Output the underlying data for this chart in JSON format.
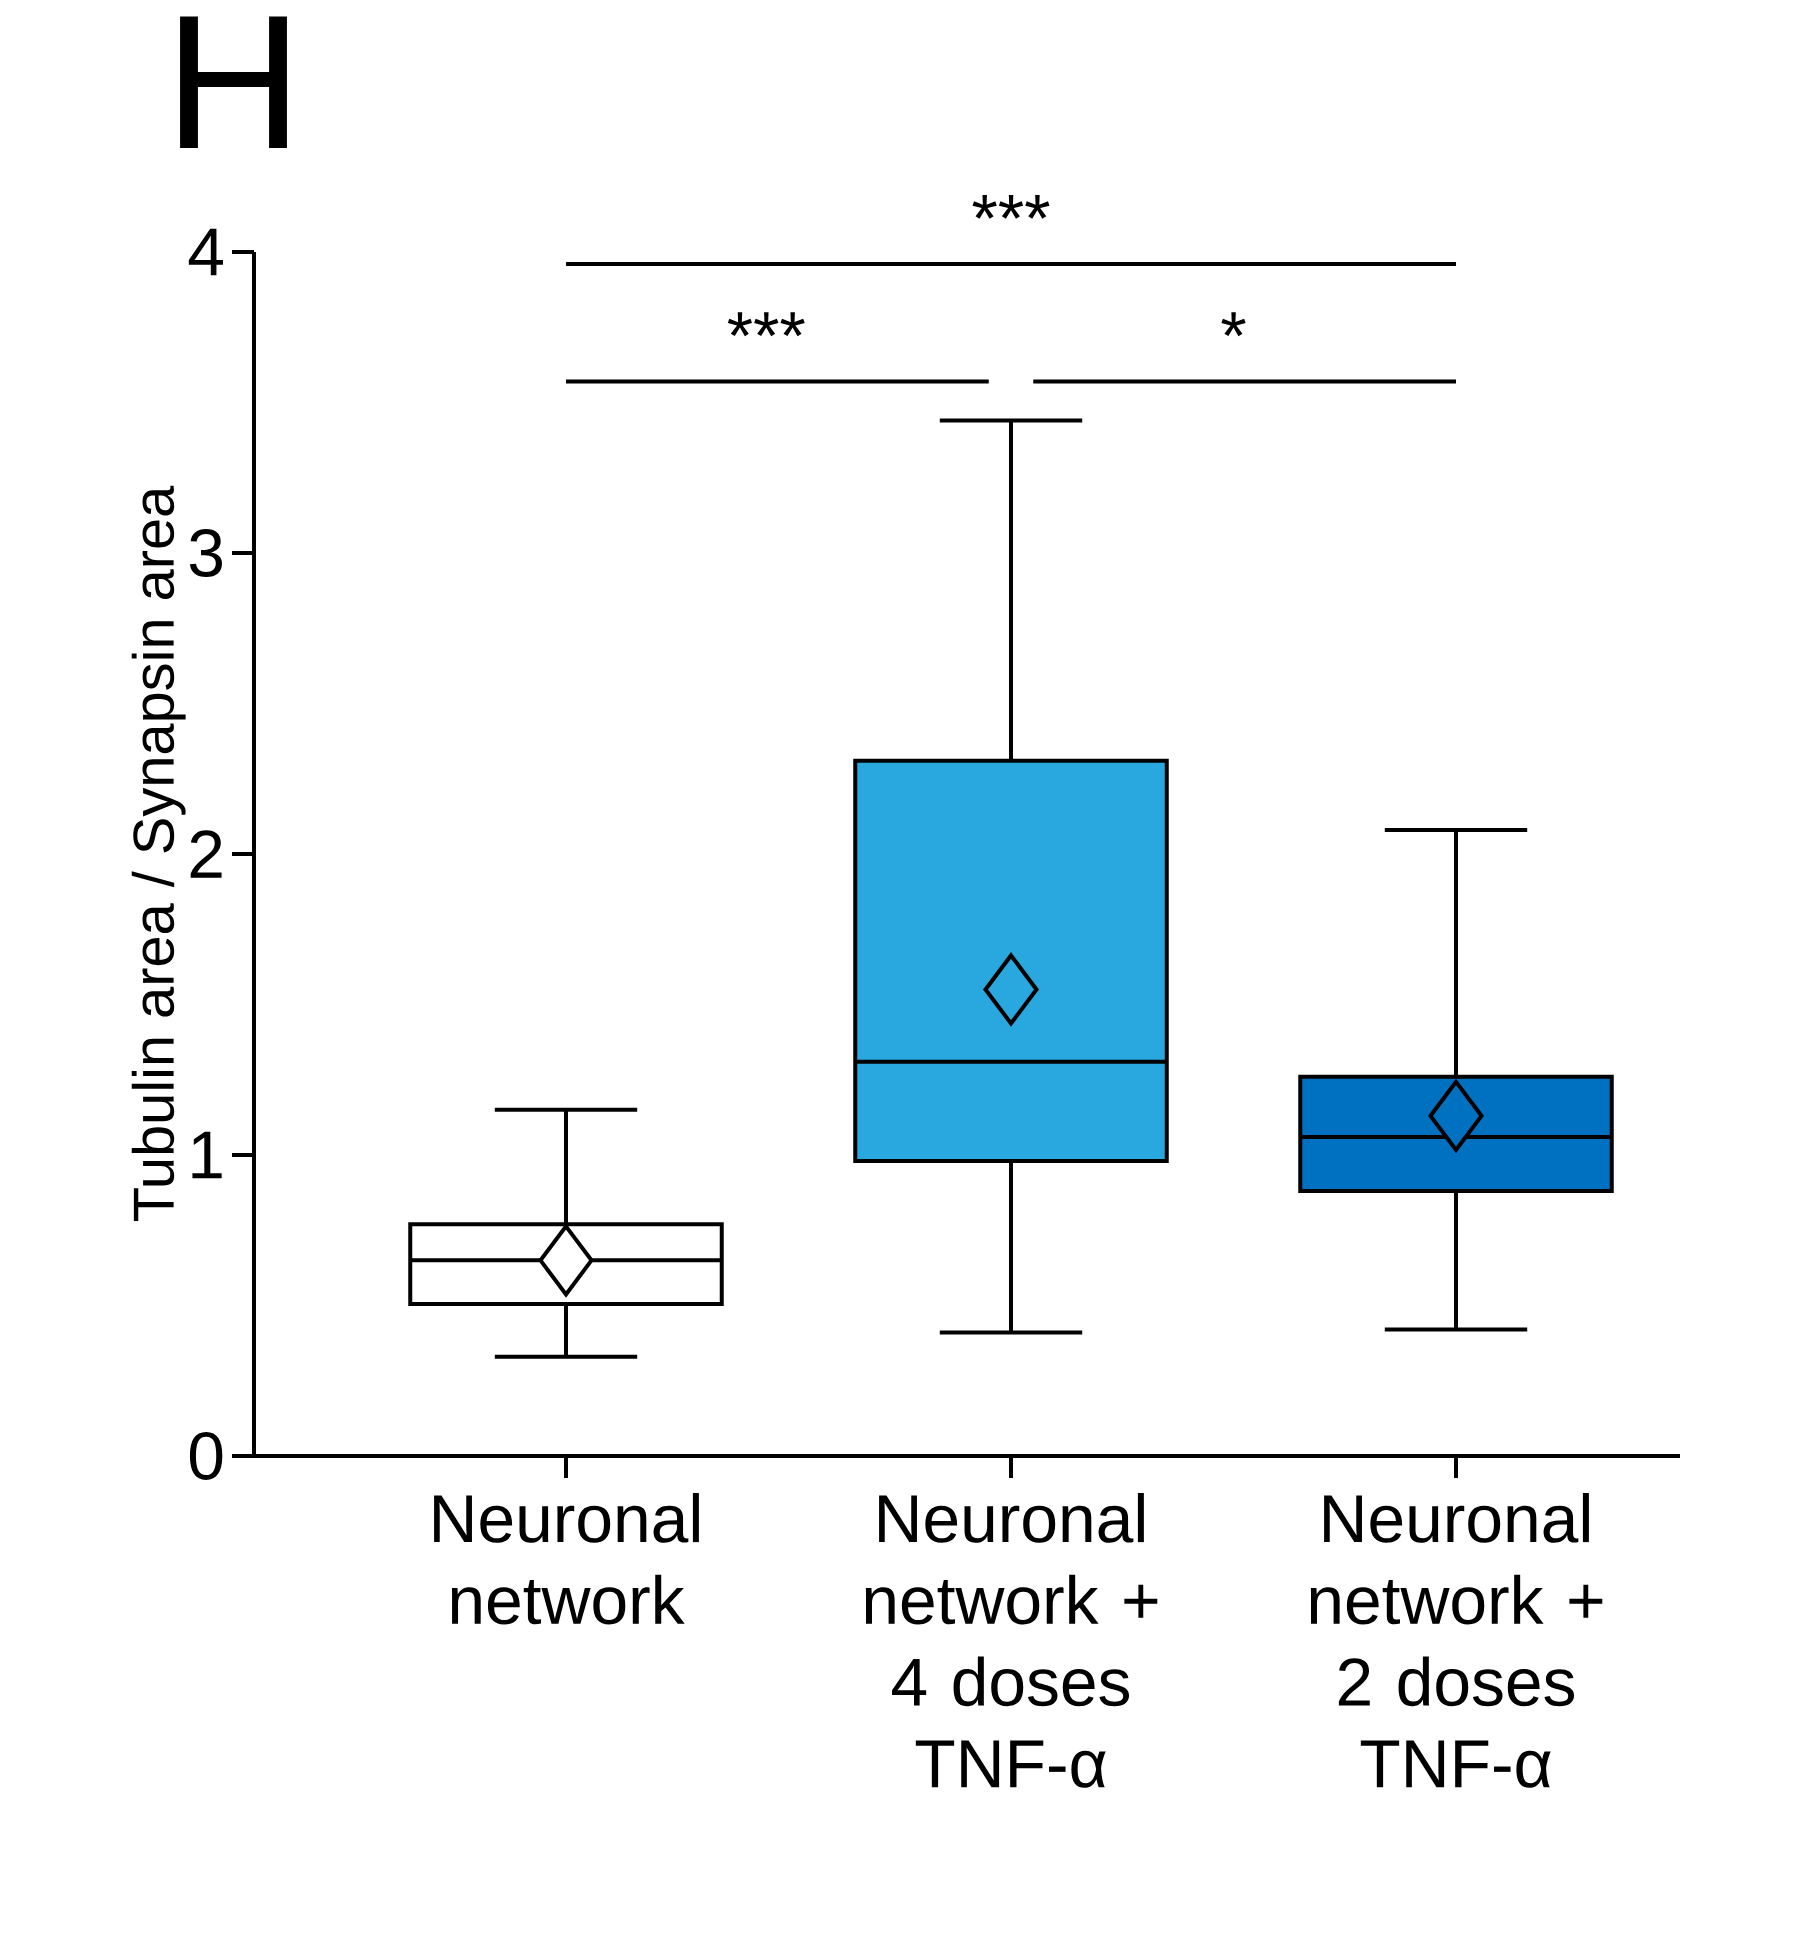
{
  "chart_data": {
    "type": "box",
    "title": "H",
    "ylabel": "Tubulin area / Synapsin  area",
    "categories": [
      "Neuronal network",
      "Neuronal network + 4 doses TNF-α",
      "Neuronal network + 2 doses TNF-α"
    ],
    "colors": [
      "#ffffff",
      "#29a8e0",
      "#0070c0"
    ],
    "boxes": [
      {
        "low": 0.33,
        "q1": 0.505,
        "median": 0.65,
        "q3": 0.77,
        "high": 1.15,
        "mean": 0.65
      },
      {
        "low": 0.41,
        "q1": 0.98,
        "median": 1.31,
        "q3": 2.31,
        "high": 3.44,
        "mean": 1.55
      },
      {
        "low": 0.42,
        "q1": 0.88,
        "median": 1.06,
        "q3": 1.26,
        "high": 2.08,
        "mean": 1.13
      }
    ],
    "ylim": [
      0,
      4
    ],
    "yticks": [
      0,
      1,
      2,
      3,
      4
    ],
    "annotations": [
      "***",
      "***",
      "*"
    ]
  }
}
